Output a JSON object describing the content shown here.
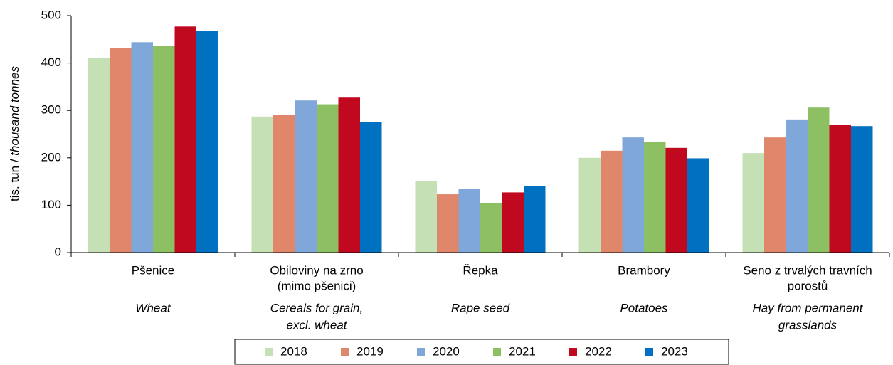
{
  "chart_data": {
    "type": "bar",
    "ylabel": {
      "cz": "tis. tun /",
      "en": "thousand tonnes"
    },
    "categories": [
      [
        "Pšenice"
      ],
      [
        "Obiloviny na zrno",
        "(mimo pšenici)"
      ],
      [
        "Řepka"
      ],
      [
        "Brambory"
      ],
      [
        "Seno z trvalých travních",
        "porostů"
      ]
    ],
    "categories_en": [
      [
        "Wheat"
      ],
      [
        "Cereals for grain,",
        "excl. wheat"
      ],
      [
        "Rape seed"
      ],
      [
        "Potatoes"
      ],
      [
        "Hay from permanent",
        "grasslands"
      ]
    ],
    "series": [
      {
        "name": "2018",
        "color": "#c5e0b4",
        "values": [
          410,
          287,
          151,
          200,
          210
        ]
      },
      {
        "name": "2019",
        "color": "#e0866a",
        "values": [
          432,
          291,
          123,
          215,
          243
        ]
      },
      {
        "name": "2020",
        "color": "#7fa7da",
        "values": [
          444,
          321,
          134,
          243,
          281
        ]
      },
      {
        "name": "2021",
        "color": "#8cc063",
        "values": [
          436,
          313,
          105,
          233,
          306
        ]
      },
      {
        "name": "2022",
        "color": "#c0081f",
        "values": [
          477,
          327,
          127,
          221,
          269
        ]
      },
      {
        "name": "2023",
        "color": "#0070c0",
        "values": [
          468,
          275,
          141,
          199,
          267
        ]
      }
    ],
    "ylim": [
      0,
      500
    ],
    "yticks": [
      0,
      100,
      200,
      300,
      400,
      500
    ],
    "grid": false,
    "legend": "bottom"
  }
}
